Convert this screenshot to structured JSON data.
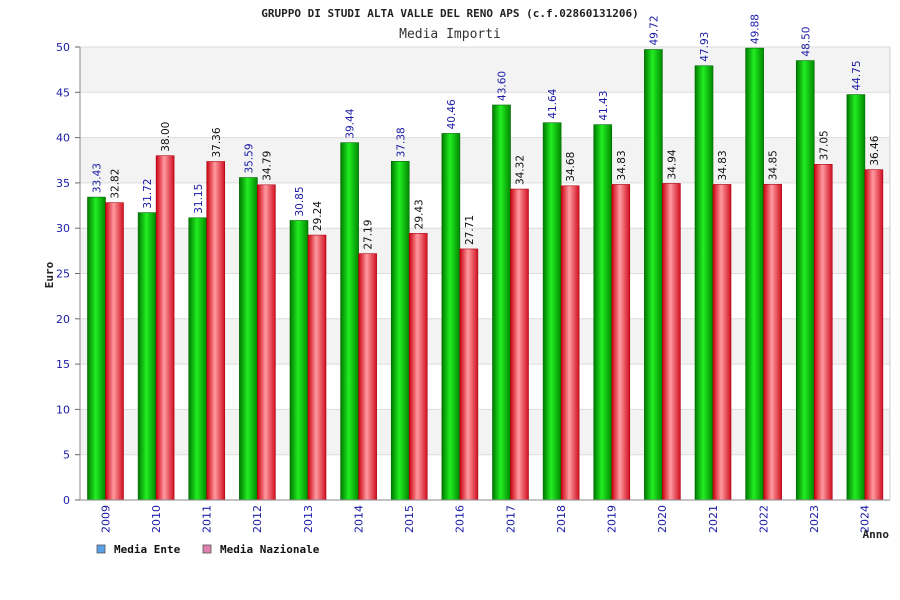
{
  "chart_data": {
    "type": "bar",
    "title": "GRUPPO DI STUDI ALTA VALLE DEL RENO APS (c.f.02860131206)",
    "subtitle": "Media Importi",
    "ylabel": "Euro",
    "xlabel": "Anno",
    "ylim": [
      0,
      50
    ],
    "yticks": [
      0,
      5,
      10,
      15,
      20,
      25,
      30,
      35,
      40,
      45,
      50
    ],
    "grid": true,
    "legend_position": "bottom-left",
    "categories": [
      "2009",
      "2010",
      "2011",
      "2012",
      "2013",
      "2014",
      "2015",
      "2016",
      "2017",
      "2018",
      "2019",
      "2020",
      "2021",
      "2022",
      "2023",
      "2024"
    ],
    "series": [
      {
        "name": "Media Ente",
        "color": "#00bb00",
        "legend_color": "#5aa0e6",
        "values": [
          33.43,
          31.72,
          31.15,
          35.59,
          30.85,
          39.44,
          37.38,
          40.46,
          43.6,
          41.64,
          41.43,
          49.72,
          47.93,
          49.88,
          48.5,
          44.75
        ],
        "labels": [
          "33.43",
          "31.72",
          "31.15",
          "35.59",
          "30.85",
          "39.44",
          "37.38",
          "40.46",
          "43.60",
          "41.64",
          "41.43",
          "49.72",
          "47.93",
          "49.88",
          "48.50",
          "44.75"
        ]
      },
      {
        "name": "Media Nazionale",
        "color": "#e8202a",
        "legend_color": "#e080b0",
        "values": [
          32.82,
          38.0,
          37.36,
          34.79,
          29.24,
          27.19,
          29.43,
          27.71,
          34.32,
          34.68,
          34.83,
          34.94,
          34.83,
          34.85,
          37.05,
          36.46
        ],
        "labels": [
          "32.82",
          "38.00",
          "37.36",
          "34.79",
          "29.24",
          "27.19",
          "29.43",
          "27.71",
          "34.32",
          "34.68",
          "34.83",
          "34.94",
          "34.83",
          "34.85",
          "37.05",
          "36.46"
        ]
      }
    ]
  }
}
